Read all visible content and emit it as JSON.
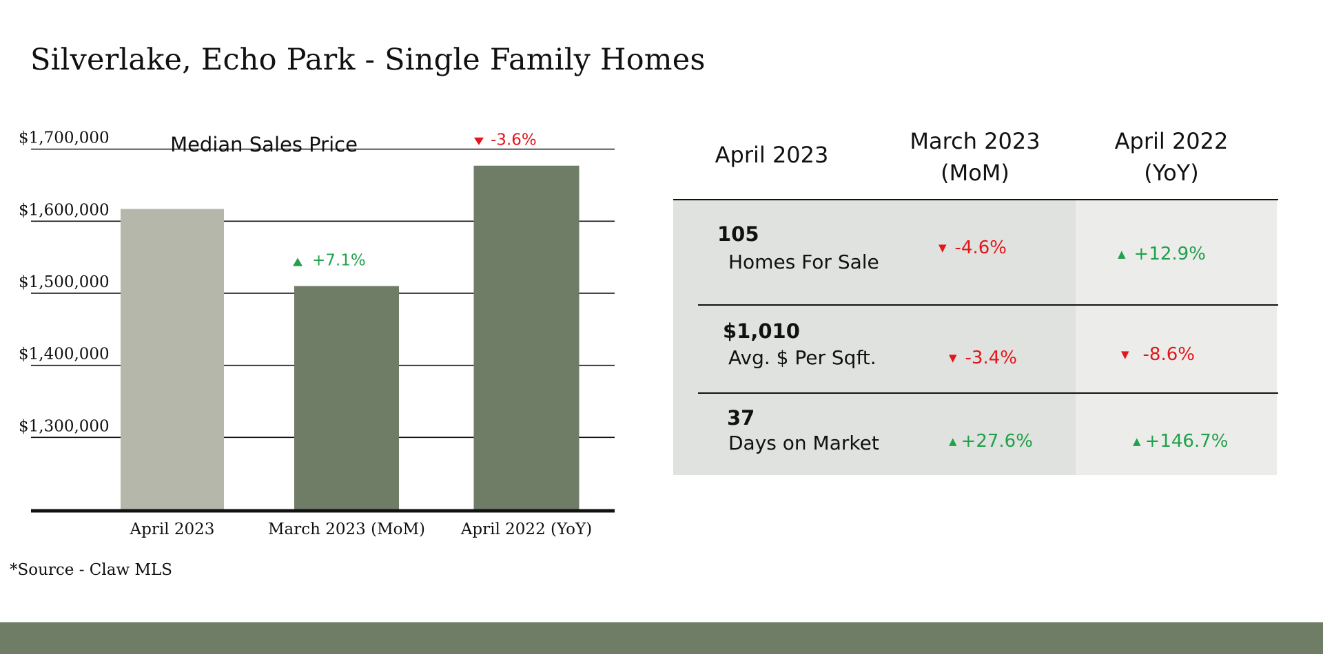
{
  "page_title": "Silverlake, Echo Park - Single Family Homes",
  "source_note": "*Source - Claw MLS",
  "colors": {
    "bar_current": "#b6b7ab",
    "bar_compare": "#6f7c66",
    "up": "#22a04b",
    "down": "#e2161b",
    "panel_left": "#dfe2de",
    "panel_right": "#ecedea",
    "footer": "#6f7c66"
  },
  "chart_data": {
    "type": "bar",
    "title": "Median Sales Price",
    "categories": [
      "April 2023",
      "March 2023 (MoM)",
      "April 2022 (YoY)"
    ],
    "values": [
      1617000,
      1510000,
      1677000
    ],
    "ylim": [
      1200000,
      1735000
    ],
    "yticks": [
      1300000,
      1400000,
      1500000,
      1600000,
      1700000
    ],
    "ytick_labels": [
      "$1,300,000",
      "$1,400,000",
      "$1,500,000",
      "$1,600,000",
      "$1,700,000"
    ],
    "annotations": [
      {
        "category": "March 2023 (MoM)",
        "direction": "up",
        "text": "+7.1%"
      },
      {
        "category": "April 2022 (YoY)",
        "direction": "down",
        "text": "-3.6%"
      }
    ],
    "grid": true,
    "legend": "none"
  },
  "table": {
    "headers": [
      "April 2023",
      "March 2023\n(MoM)",
      "April 2022\n(YoY)"
    ],
    "rows": [
      {
        "value": "105",
        "label": "Homes For Sale",
        "mom": {
          "direction": "down",
          "arrow": "▼",
          "text": "-4.6%"
        },
        "yoy": {
          "direction": "up",
          "arrow": "▲",
          "text": "+12.9%"
        }
      },
      {
        "value": "$1,010",
        "label": "Avg. $ Per Sqft.",
        "mom": {
          "direction": "down",
          "arrow": "▼",
          "text": "-3.4%"
        },
        "yoy": {
          "direction": "down",
          "arrow": "▼",
          "text": "-8.6%"
        }
      },
      {
        "value": "37",
        "label": "Days on Market",
        "mom": {
          "direction": "up",
          "arrow": "▲",
          "text": "+27.6%"
        },
        "yoy": {
          "direction": "up",
          "arrow": "▲",
          "text": "+146.7%"
        }
      }
    ]
  }
}
